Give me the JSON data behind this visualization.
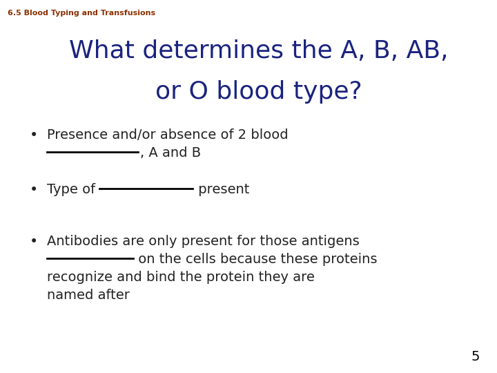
{
  "background_color": "#ffffff",
  "subtitle": "6.5 Blood Typing and Transfusions",
  "subtitle_color": "#8B3000",
  "subtitle_fontsize": 8,
  "title_line1": "What determines the A, B, AB,",
  "title_line2": "or O blood type?",
  "title_color": "#1a237e",
  "title_fontsize": 26,
  "bullet_color": "#222222",
  "bullet_fontsize": 14,
  "page_number": "5",
  "page_color": "#000000"
}
